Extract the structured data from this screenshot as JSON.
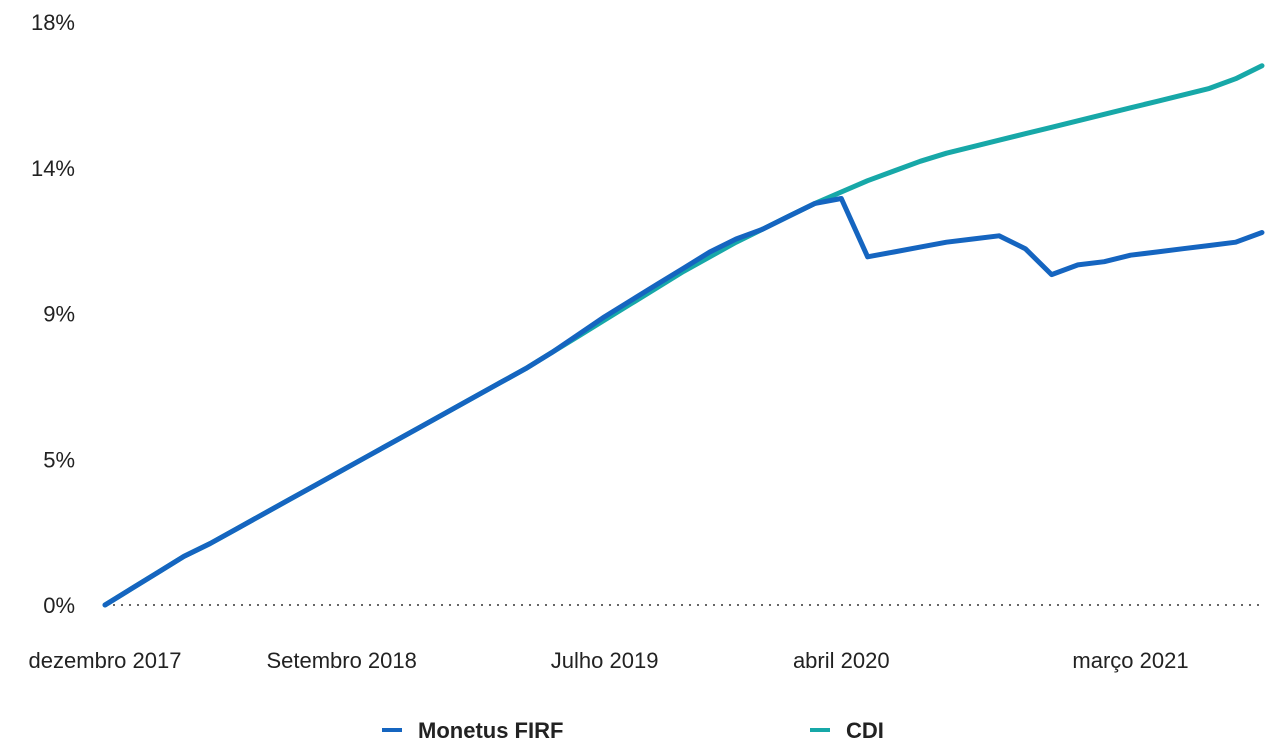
{
  "chart_data": {
    "type": "line",
    "title": "",
    "xlabel": "",
    "ylabel": "",
    "x_tick_labels": [
      "dezembro 2017",
      "Setembro 2018",
      "Julho 2019",
      "abril 2020",
      "março 2021"
    ],
    "x_ticks": [
      "2017-12",
      "2018-09",
      "2019-07",
      "2020-04",
      "2021-03"
    ],
    "xlim": [
      "2017-12",
      "2021-08"
    ],
    "y_tick_labels": [
      "0%",
      "5%",
      "9%",
      "14%",
      "18%"
    ],
    "y_ticks": [
      0,
      4.5,
      9,
      13.5,
      18
    ],
    "ylim": [
      0,
      18
    ],
    "grid": false,
    "baseline": {
      "value": 0,
      "style": "dotted"
    },
    "legend": {
      "position": "bottom-center"
    },
    "series": [
      {
        "name": "Monetus FIRF",
        "color": "#1565c0",
        "points": [
          [
            "2017-12",
            0.0
          ],
          [
            "2018-01",
            0.5
          ],
          [
            "2018-02",
            1.0
          ],
          [
            "2018-03",
            1.5
          ],
          [
            "2018-04",
            1.9
          ],
          [
            "2018-05",
            2.35
          ],
          [
            "2018-06",
            2.8
          ],
          [
            "2018-07",
            3.25
          ],
          [
            "2018-08",
            3.7
          ],
          [
            "2018-09",
            4.15
          ],
          [
            "2018-10",
            4.6
          ],
          [
            "2018-11",
            5.05
          ],
          [
            "2018-12",
            5.5
          ],
          [
            "2019-01",
            5.95
          ],
          [
            "2019-02",
            6.4
          ],
          [
            "2019-03",
            6.85
          ],
          [
            "2019-04",
            7.3
          ],
          [
            "2019-05",
            7.8
          ],
          [
            "2019-06",
            8.35
          ],
          [
            "2019-07",
            8.9
          ],
          [
            "2019-08",
            9.4
          ],
          [
            "2019-09",
            9.9
          ],
          [
            "2019-10",
            10.4
          ],
          [
            "2019-11",
            10.9
          ],
          [
            "2019-12",
            11.3
          ],
          [
            "2020-01",
            11.6
          ],
          [
            "2020-02",
            12.0
          ],
          [
            "2020-03",
            12.4
          ],
          [
            "2020-04",
            12.55
          ],
          [
            "2020-05",
            10.75
          ],
          [
            "2020-06",
            10.9
          ],
          [
            "2020-07",
            11.05
          ],
          [
            "2020-08",
            11.2
          ],
          [
            "2020-09",
            11.3
          ],
          [
            "2020-10",
            11.4
          ],
          [
            "2020-11",
            11.0
          ],
          [
            "2020-12",
            10.2
          ],
          [
            "2021-01",
            10.5
          ],
          [
            "2021-02",
            10.6
          ],
          [
            "2021-03",
            10.8
          ],
          [
            "2021-04",
            10.9
          ],
          [
            "2021-05",
            11.0
          ],
          [
            "2021-06",
            11.1
          ],
          [
            "2021-07",
            11.2
          ],
          [
            "2021-08",
            11.5
          ]
        ]
      },
      {
        "name": "CDI",
        "color": "#17a8a8",
        "points": [
          [
            "2017-12",
            0.0
          ],
          [
            "2018-01",
            0.5
          ],
          [
            "2018-02",
            1.0
          ],
          [
            "2018-03",
            1.5
          ],
          [
            "2018-04",
            1.9
          ],
          [
            "2018-05",
            2.35
          ],
          [
            "2018-06",
            2.8
          ],
          [
            "2018-07",
            3.25
          ],
          [
            "2018-08",
            3.7
          ],
          [
            "2018-09",
            4.15
          ],
          [
            "2018-10",
            4.6
          ],
          [
            "2018-11",
            5.05
          ],
          [
            "2018-12",
            5.5
          ],
          [
            "2019-01",
            5.95
          ],
          [
            "2019-02",
            6.4
          ],
          [
            "2019-03",
            6.85
          ],
          [
            "2019-04",
            7.3
          ],
          [
            "2019-05",
            7.8
          ],
          [
            "2019-06",
            8.3
          ],
          [
            "2019-07",
            8.8
          ],
          [
            "2019-08",
            9.3
          ],
          [
            "2019-09",
            9.8
          ],
          [
            "2019-10",
            10.3
          ],
          [
            "2019-11",
            10.75
          ],
          [
            "2019-12",
            11.2
          ],
          [
            "2020-01",
            11.6
          ],
          [
            "2020-02",
            12.0
          ],
          [
            "2020-03",
            12.4
          ],
          [
            "2020-04",
            12.75
          ],
          [
            "2020-05",
            13.1
          ],
          [
            "2020-06",
            13.4
          ],
          [
            "2020-07",
            13.7
          ],
          [
            "2020-08",
            13.95
          ],
          [
            "2020-09",
            14.15
          ],
          [
            "2020-10",
            14.35
          ],
          [
            "2020-11",
            14.55
          ],
          [
            "2020-12",
            14.75
          ],
          [
            "2021-01",
            14.95
          ],
          [
            "2021-02",
            15.15
          ],
          [
            "2021-03",
            15.35
          ],
          [
            "2021-04",
            15.55
          ],
          [
            "2021-05",
            15.75
          ],
          [
            "2021-06",
            15.95
          ],
          [
            "2021-07",
            16.25
          ],
          [
            "2021-08",
            16.65
          ]
        ]
      }
    ]
  }
}
